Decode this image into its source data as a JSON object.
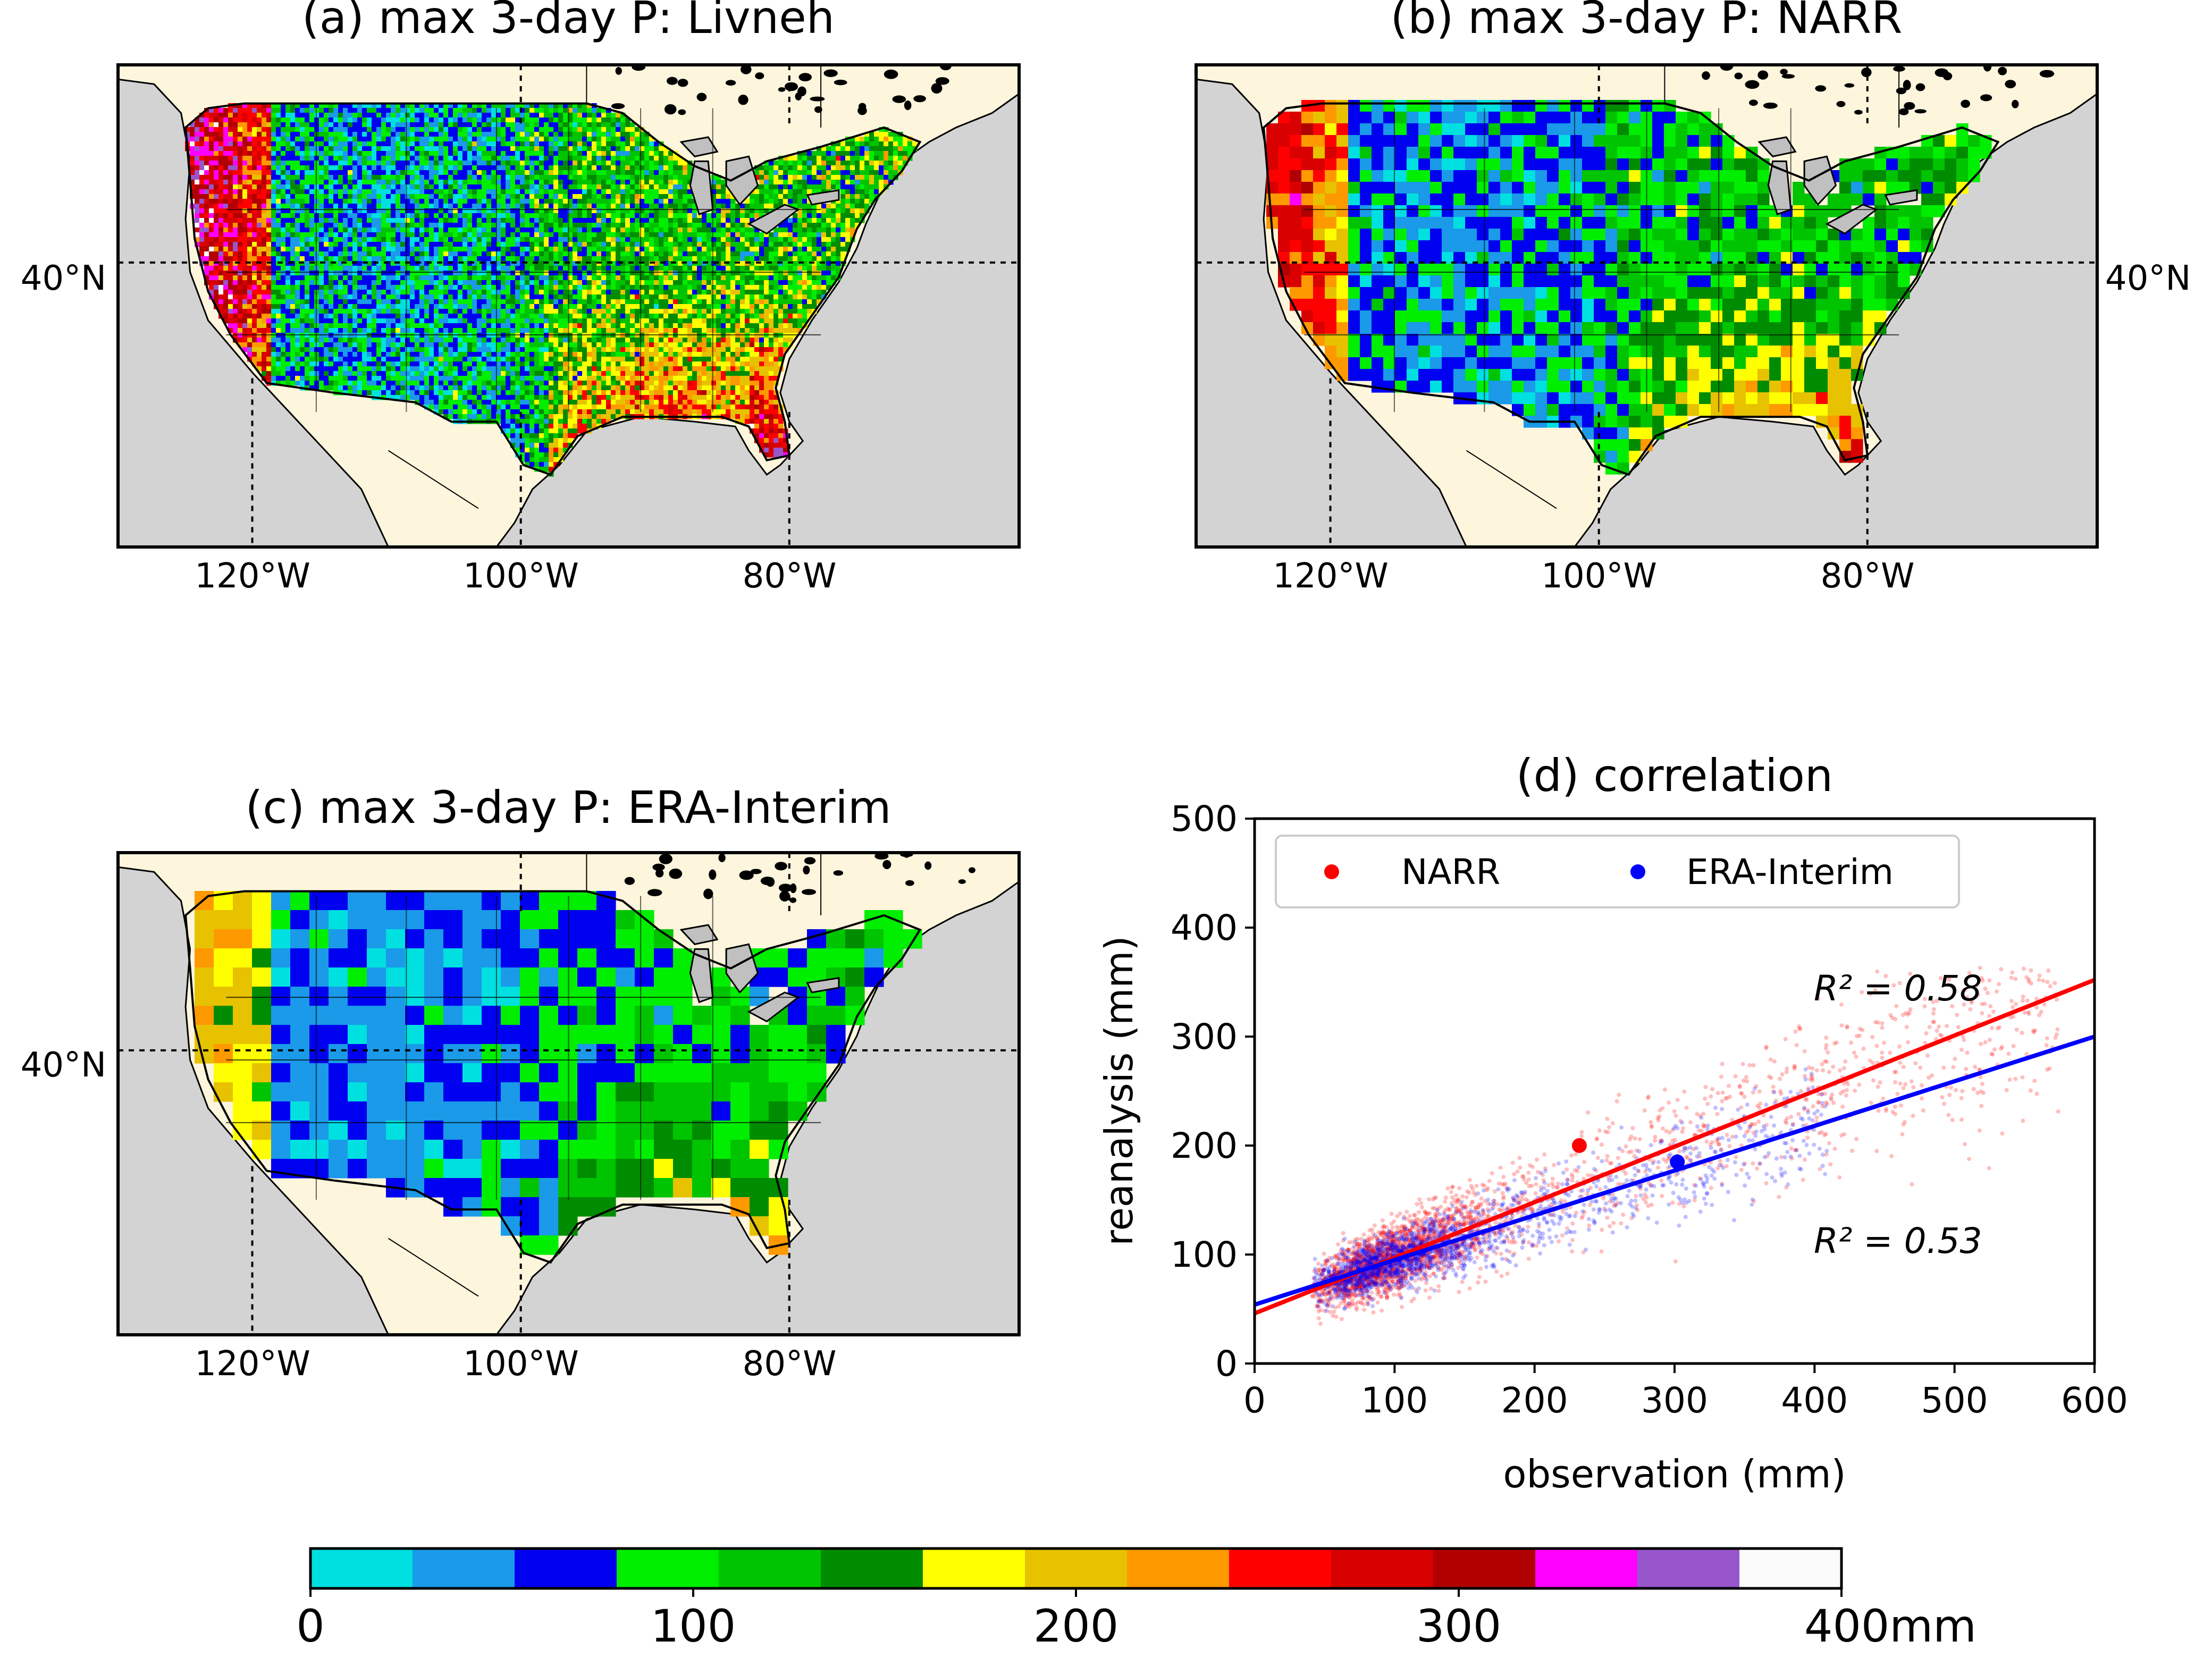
{
  "figure": {
    "panels": [
      {
        "title": "(a) max 3-day P: Livneh",
        "lat_label": "40°N",
        "lon_labels": [
          "120°W",
          "100°W",
          "80°W"
        ]
      },
      {
        "title": "(b) max 3-day P: NARR",
        "lat_label": "40°N",
        "lon_labels": [
          "120°W",
          "100°W",
          "80°W"
        ]
      },
      {
        "title": "(c) max 3-day P: ERA-Interim",
        "lat_label": "40°N",
        "lon_labels": [
          "120°W",
          "100°W",
          "80°W"
        ]
      }
    ],
    "map_colors": {
      "ocean": "#d3d3d3",
      "land": "#fdf5dc",
      "lakes": "#c0c0c0",
      "coast": "#000000"
    },
    "colorbar": {
      "colors": [
        "#00e0e0",
        "#1a9ae8",
        "#0000f0",
        "#00ee00",
        "#00c400",
        "#008c00",
        "#ffff00",
        "#e6c200",
        "#ff9900",
        "#ff0000",
        "#d80000",
        "#b00000",
        "#ff00ff",
        "#9955cc",
        "#fbfbfb"
      ],
      "bounds": [
        0,
        400
      ],
      "tick_labels": [
        "0",
        "100",
        "200",
        "300",
        "400mm"
      ]
    }
  },
  "chart_data": [
    {
      "type": "heatmap",
      "title": "(a) max 3-day P: Livneh",
      "unit": "mm",
      "dataset": "Livneh",
      "value_range": [
        0,
        400
      ]
    },
    {
      "type": "heatmap",
      "title": "(b) max 3-day P: NARR",
      "unit": "mm",
      "dataset": "NARR",
      "value_range": [
        0,
        400
      ]
    },
    {
      "type": "heatmap",
      "title": "(c) max 3-day P: ERA-Interim",
      "unit": "mm",
      "dataset": "ERA-Interim",
      "value_range": [
        0,
        400
      ]
    },
    {
      "type": "scatter",
      "title": "(d) correlation",
      "xlabel": "observation (mm)",
      "ylabel": "reanalysis (mm)",
      "xlim": [
        0,
        600
      ],
      "ylim": [
        0,
        500
      ],
      "xticks": [
        0,
        100,
        200,
        300,
        400,
        500,
        600
      ],
      "yticks": [
        0,
        100,
        200,
        300,
        400,
        500
      ],
      "legend": "top",
      "grid": false,
      "series": [
        {
          "name": "NARR",
          "color": "#ff0000",
          "mean_point": [
            232,
            200
          ],
          "fit": {
            "intercept": 46,
            "slope": 0.51
          },
          "r2_label": "R² = 0.58",
          "r2_value": 0.58,
          "x_range": [
            30,
            575
          ],
          "y_range": [
            30,
            365
          ]
        },
        {
          "name": "ERA-Interim",
          "color": "#0000ff",
          "mean_point": [
            302,
            185
          ],
          "fit": {
            "intercept": 54,
            "slope": 0.41
          },
          "r2_label": "R² = 0.53",
          "r2_value": 0.53,
          "x_range": [
            30,
            410
          ],
          "y_range": [
            30,
            300
          ]
        }
      ]
    }
  ]
}
